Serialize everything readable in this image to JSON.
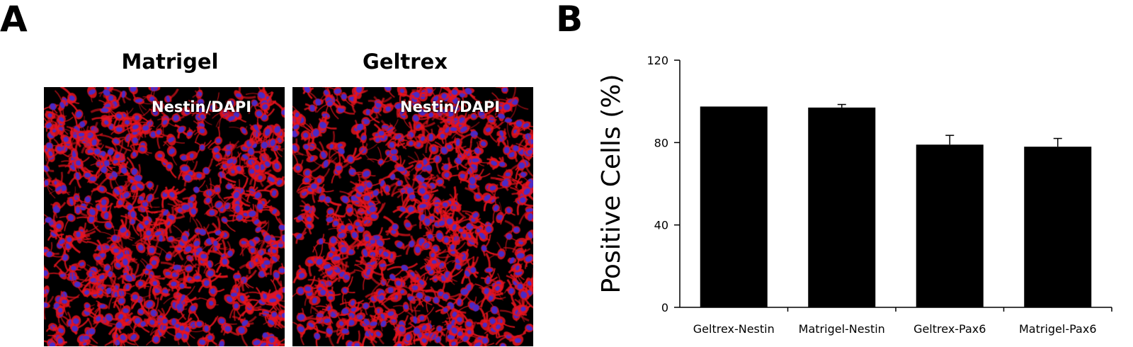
{
  "panel_a": {
    "letter": "A",
    "images": [
      {
        "title": "Matrigel",
        "stain": "Nestin/DAPI"
      },
      {
        "title": "Geltrex",
        "stain": "Nestin/DAPI"
      }
    ]
  },
  "panel_b": {
    "letter": "B"
  },
  "colors": {
    "nestin": "#e8141e",
    "dapi": "#3a2dd8",
    "bar": "#000000"
  },
  "chart_data": {
    "type": "bar",
    "title": "",
    "xlabel": "",
    "ylabel": "Positive Cells (%)",
    "ylim": [
      0,
      120
    ],
    "yticks": [
      0,
      40,
      80,
      120
    ],
    "categories": [
      "Geltrex-Nestin",
      "Matrigel-Nestin",
      "Geltrex-Pax6",
      "Matrigel-Pax6"
    ],
    "values": [
      97.5,
      97,
      79,
      78
    ],
    "errors": [
      0,
      1.5,
      4.5,
      4
    ],
    "grid": false
  }
}
